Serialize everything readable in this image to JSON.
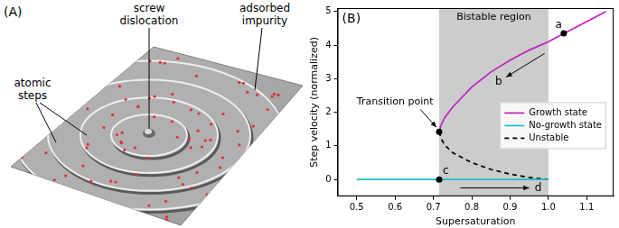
{
  "panel_a": {
    "label": "(A)",
    "annotations": {
      "screw_dislocation": "screw dislocation",
      "adsorbed_impurity": "adsorbed impurity",
      "atomic_steps": "atomic steps"
    }
  },
  "chart_data": {
    "type": "line",
    "panel_label": "(B)",
    "x_label": "Supersaturation",
    "y_label": "Step velocity (normalized)",
    "xlim": [
      0.45,
      1.17
    ],
    "ylim": [
      -0.5,
      5.1
    ],
    "xticks": [
      0.5,
      0.6,
      0.7,
      0.8,
      0.9,
      {
        "value": 1,
        "label": "1.0"
      },
      1.1
    ],
    "yticks": [
      0,
      1,
      2,
      3,
      4,
      5
    ],
    "grid": false,
    "legend": "right",
    "series": [
      {
        "name": "Growth state",
        "color": "#c020c0",
        "line_style": "solid",
        "x": [
          0.715,
          0.72,
          0.73,
          0.75,
          0.8,
          0.85,
          0.9,
          0.95,
          1.0,
          1.05,
          1.1,
          1.15
        ],
        "values": [
          1.42,
          1.62,
          1.85,
          2.15,
          2.75,
          3.2,
          3.55,
          3.85,
          4.1,
          4.4,
          4.7,
          5.0
        ]
      },
      {
        "name": "No-growth state",
        "color": "#17becf",
        "line_style": "solid",
        "x": [
          0.5,
          1.0
        ],
        "values": [
          0,
          0
        ]
      },
      {
        "name": "Unstable",
        "color": "#000000",
        "line_style": "dashed",
        "x": [
          0.715,
          0.72,
          0.73,
          0.75,
          0.8,
          0.85,
          0.9,
          0.95,
          1.0
        ],
        "values": [
          1.42,
          1.22,
          1.02,
          0.8,
          0.5,
          0.3,
          0.16,
          0.06,
          0
        ]
      }
    ],
    "shaded_region": {
      "label": "Bistable region",
      "x_range": [
        0.715,
        1.0
      ],
      "color": "#cccccc"
    },
    "points": [
      {
        "label": "a",
        "x": 1.04,
        "y": 4.35
      },
      {
        "label": "c",
        "x": 0.715,
        "y": 0
      }
    ],
    "transition_point": {
      "label": "Transition point",
      "x": 0.715,
      "y": 1.42,
      "label_x": 0.6,
      "label_y": 2.3
    },
    "arrows": [
      {
        "label": "b",
        "from": [
          0.99,
          3.75
        ],
        "to": [
          0.89,
          3.05
        ]
      },
      {
        "label": "d",
        "from": [
          0.77,
          -0.25
        ],
        "to": [
          0.95,
          -0.25
        ]
      }
    ]
  }
}
